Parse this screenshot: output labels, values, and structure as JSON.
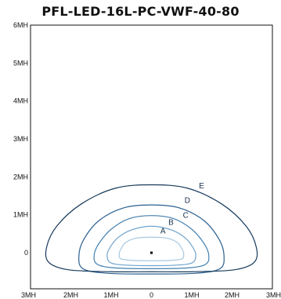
{
  "chart_data": {
    "type": "contour",
    "title": "PFL-LED-16L-PC-VWF-40-80",
    "x_unit": "MH",
    "y_unit": "MH",
    "xlim": [
      -3,
      3
    ],
    "ylim": [
      -0.95,
      6
    ],
    "x_ticks": [
      {
        "value": -3,
        "label": "3MH"
      },
      {
        "value": -2,
        "label": "2MH"
      },
      {
        "value": -1,
        "label": "1MH"
      },
      {
        "value": 0,
        "label": "0"
      },
      {
        "value": 1,
        "label": "1MH"
      },
      {
        "value": 2,
        "label": "2MH"
      },
      {
        "value": 3,
        "label": "3MH"
      }
    ],
    "y_ticks": [
      {
        "value": 0,
        "label": "0"
      },
      {
        "value": 1,
        "label": "1MH"
      },
      {
        "value": 2,
        "label": "2MH"
      },
      {
        "value": 3,
        "label": "3MH"
      },
      {
        "value": 4,
        "label": "4MH"
      },
      {
        "value": 5,
        "label": "5MH"
      },
      {
        "value": 6,
        "label": "6MH"
      }
    ],
    "grid": false,
    "fixture_position": [
      0,
      0
    ],
    "contours": [
      {
        "label": "A",
        "color": "#a8c8e0",
        "label_at": [
          0.22,
          0.51
        ],
        "points": [
          [
            0,
            0.41
          ],
          [
            0.4,
            0.38
          ],
          [
            0.65,
            0.26
          ],
          [
            0.78,
            0.05
          ],
          [
            0.8,
            -0.05
          ],
          [
            0.76,
            -0.16
          ],
          [
            0.5,
            -0.2
          ],
          [
            0,
            -0.21
          ],
          [
            -0.5,
            -0.2
          ],
          [
            -0.76,
            -0.16
          ],
          [
            -0.8,
            -0.05
          ],
          [
            -0.78,
            0.05
          ],
          [
            -0.65,
            0.26
          ],
          [
            -0.4,
            0.38
          ]
        ]
      },
      {
        "label": "B",
        "color": "#6fa3cd",
        "label_at": [
          0.42,
          0.74
        ],
        "points": [
          [
            0,
            0.7
          ],
          [
            0.5,
            0.6
          ],
          [
            0.85,
            0.38
          ],
          [
            1.05,
            0.1
          ],
          [
            1.1,
            -0.08
          ],
          [
            1.02,
            -0.26
          ],
          [
            0.7,
            -0.32
          ],
          [
            0,
            -0.34
          ],
          [
            -0.7,
            -0.32
          ],
          [
            -1.02,
            -0.26
          ],
          [
            -1.1,
            -0.08
          ],
          [
            -1.05,
            0.1
          ],
          [
            -0.85,
            0.38
          ],
          [
            -0.5,
            0.6
          ]
        ]
      },
      {
        "label": "C",
        "color": "#4480b0",
        "label_at": [
          0.78,
          0.92
        ],
        "points": [
          [
            0,
            0.98
          ],
          [
            0.55,
            0.9
          ],
          [
            1.0,
            0.62
          ],
          [
            1.3,
            0.25
          ],
          [
            1.42,
            -0.05
          ],
          [
            1.35,
            -0.3
          ],
          [
            0.9,
            -0.4
          ],
          [
            0,
            -0.42
          ],
          [
            -0.9,
            -0.4
          ],
          [
            -1.35,
            -0.3
          ],
          [
            -1.42,
            -0.05
          ],
          [
            -1.3,
            0.25
          ],
          [
            -1.0,
            0.62
          ],
          [
            -0.55,
            0.9
          ]
        ]
      },
      {
        "label": "D",
        "color": "#2a5f8f",
        "label_at": [
          0.82,
          1.31
        ],
        "points": [
          [
            0,
            1.26
          ],
          [
            0.7,
            1.18
          ],
          [
            1.3,
            0.85
          ],
          [
            1.68,
            0.35
          ],
          [
            1.8,
            -0.08
          ],
          [
            1.7,
            -0.42
          ],
          [
            1.1,
            -0.54
          ],
          [
            0,
            -0.56
          ],
          [
            -1.1,
            -0.54
          ],
          [
            -1.7,
            -0.42
          ],
          [
            -1.8,
            -0.08
          ],
          [
            -1.68,
            0.35
          ],
          [
            -1.3,
            0.85
          ],
          [
            -0.7,
            1.18
          ]
        ]
      },
      {
        "label": "E",
        "color": "#173a5c",
        "label_at": [
          1.18,
          1.7
        ],
        "points": [
          [
            0,
            1.79
          ],
          [
            0.9,
            1.7
          ],
          [
            1.75,
            1.28
          ],
          [
            2.35,
            0.7
          ],
          [
            2.6,
            0.15
          ],
          [
            2.55,
            -0.25
          ],
          [
            2.05,
            -0.45
          ],
          [
            1.0,
            -0.5
          ],
          [
            0,
            -0.5
          ],
          [
            -1.0,
            -0.5
          ],
          [
            -2.05,
            -0.45
          ],
          [
            -2.55,
            -0.25
          ],
          [
            -2.6,
            0.15
          ],
          [
            -2.35,
            0.7
          ],
          [
            -1.75,
            1.28
          ],
          [
            -0.9,
            1.7
          ]
        ]
      }
    ]
  }
}
